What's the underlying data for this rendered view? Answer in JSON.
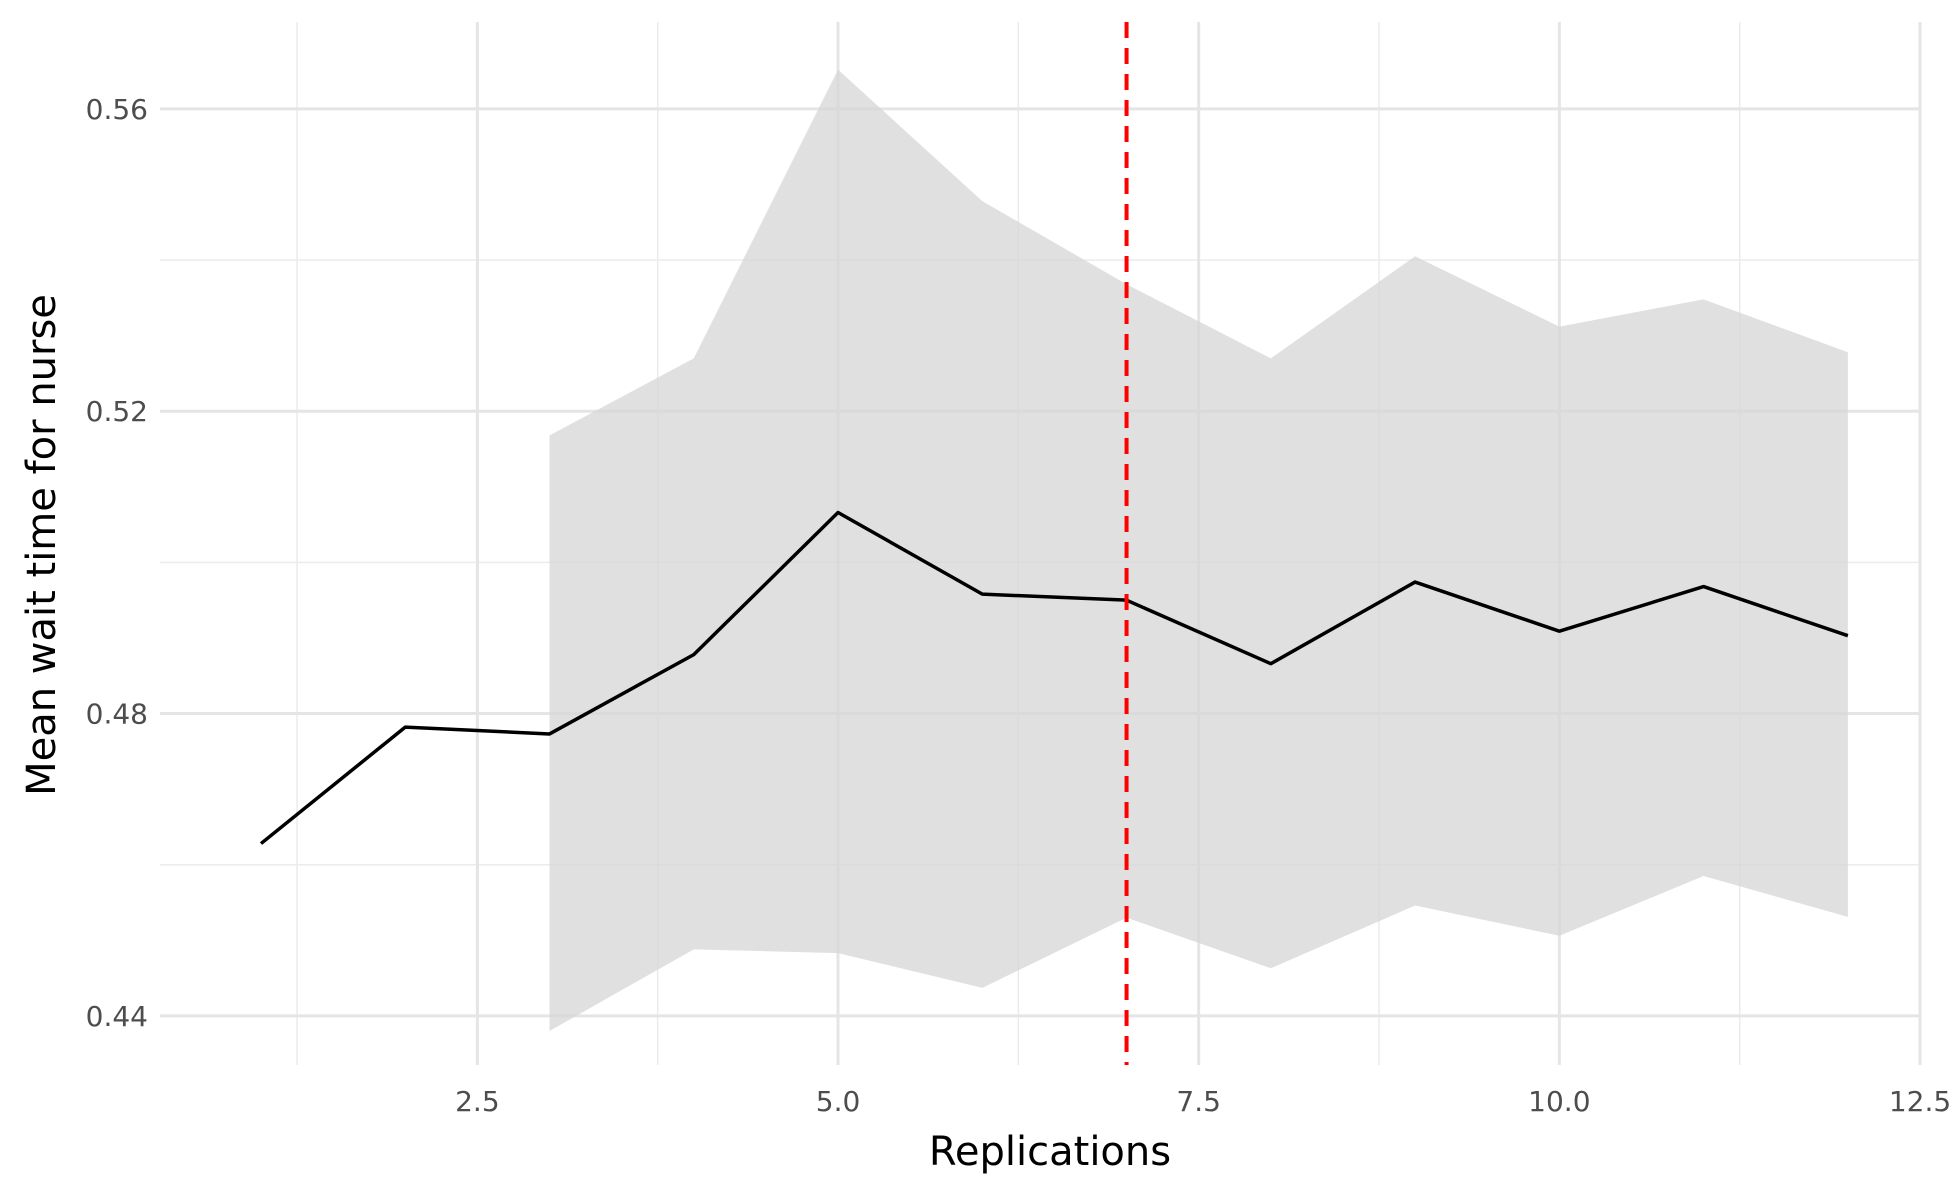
{
  "chart_data": {
    "type": "line",
    "title": "",
    "xlabel": "Replications",
    "ylabel": "Mean wait time for nurse",
    "xlim": [
      0.3,
      12.5
    ],
    "ylim": [
      0.4335,
      0.5715
    ],
    "x_ticks": [
      {
        "value": 2.5,
        "label": "2.5"
      },
      {
        "value": 5.0,
        "label": "5.0"
      },
      {
        "value": 7.5,
        "label": "7.5"
      },
      {
        "value": 10.0,
        "label": "10.0"
      },
      {
        "value": 12.5,
        "label": "12.5"
      }
    ],
    "x_minor_ticks": [
      1.25,
      3.75,
      6.25,
      8.75,
      11.25
    ],
    "y_ticks": [
      {
        "value": 0.44,
        "label": "0.44"
      },
      {
        "value": 0.48,
        "label": "0.48"
      },
      {
        "value": 0.52,
        "label": "0.52"
      },
      {
        "value": 0.56,
        "label": "0.56"
      }
    ],
    "y_minor_ticks": [
      0.46,
      0.5,
      0.54
    ],
    "grid": true,
    "legend": "none",
    "series": [
      {
        "type": "line",
        "color": "#000000",
        "x": [
          1,
          2,
          3,
          4,
          5,
          6,
          7,
          8,
          9,
          10,
          11,
          12
        ],
        "y": [
          0.4628,
          0.4782,
          0.4773,
          0.4878,
          0.5066,
          0.4958,
          0.495,
          0.4866,
          0.4974,
          0.4909,
          0.4968,
          0.4903
        ]
      }
    ],
    "confidence_band": {
      "color": "#d6d6d6",
      "x": [
        3,
        4,
        5,
        6,
        7,
        8,
        9,
        10,
        11,
        12
      ],
      "lower": [
        0.438,
        0.4488,
        0.4483,
        0.4437,
        0.453,
        0.4463,
        0.4546,
        0.4506,
        0.4585,
        0.4531
      ],
      "upper": [
        0.5168,
        0.527,
        0.5652,
        0.5478,
        0.5368,
        0.527,
        0.5405,
        0.5312,
        0.5348,
        0.5278
      ]
    },
    "reference_lines": [
      {
        "orientation": "vertical",
        "x": 7,
        "color": "#ff0000",
        "style": "dashed"
      }
    ]
  }
}
